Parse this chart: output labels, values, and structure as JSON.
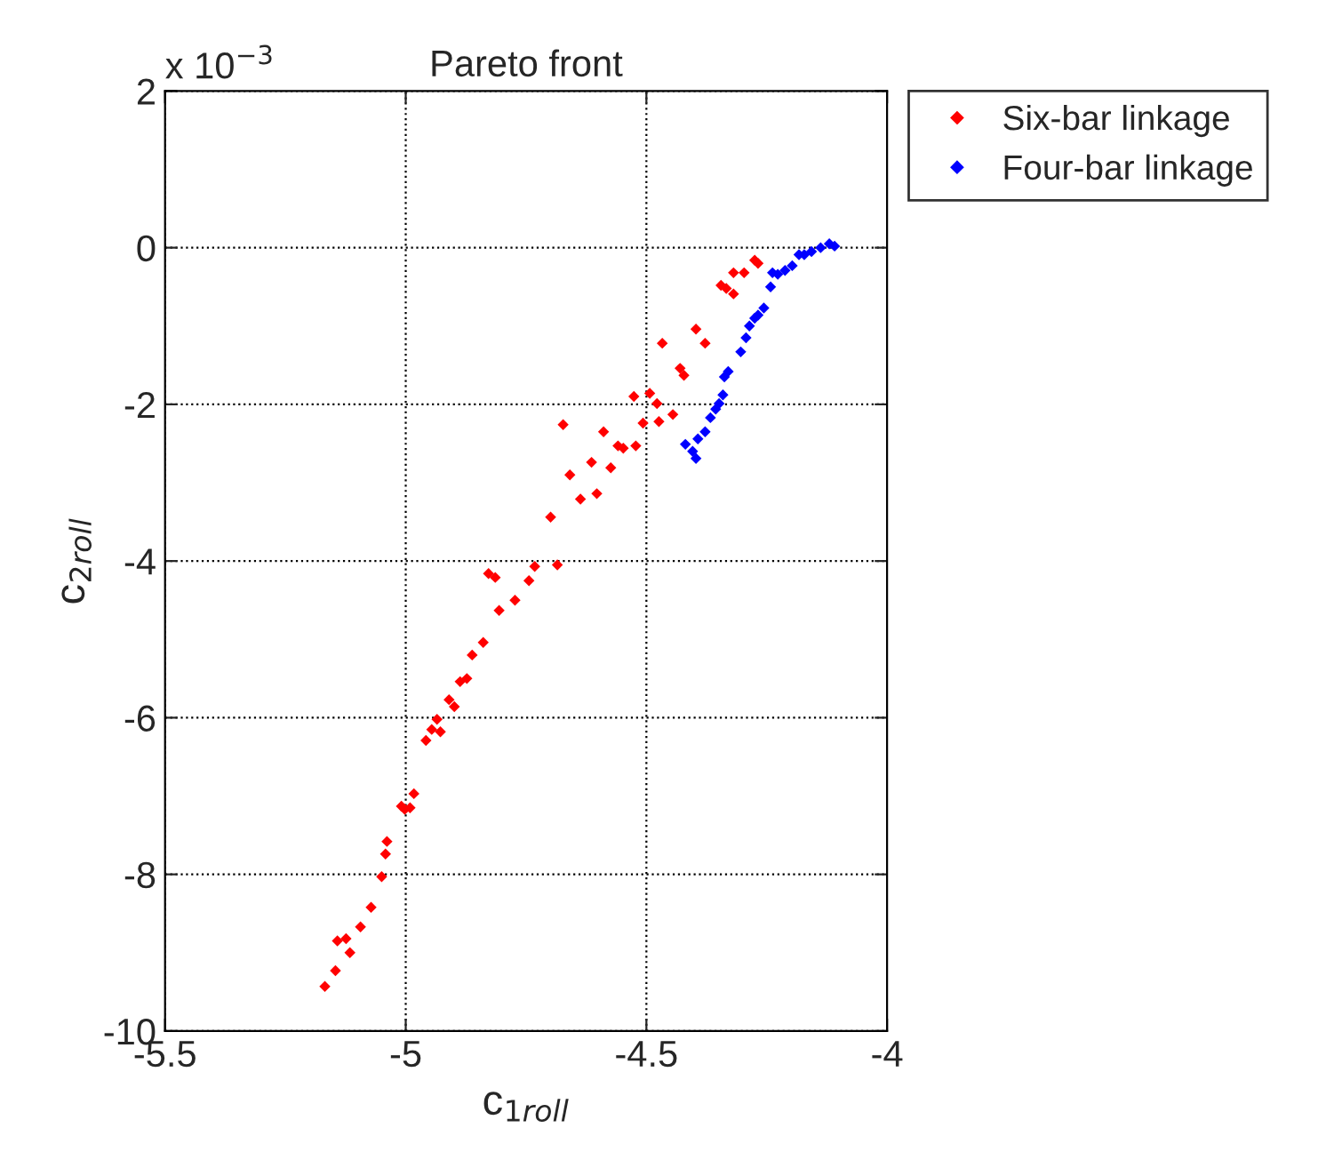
{
  "chart_data": {
    "type": "scatter",
    "title": "Pareto front",
    "xlabel": "c$_{1roll}$",
    "ylabel": "c$_{2roll}$",
    "annotations": [
      "x 10$^{−3}$"
    ],
    "xlim": [
      -5.5,
      -4
    ],
    "xticks": [
      -5.5,
      -5,
      -4.5,
      -4
    ],
    "ylim": [
      -10,
      2
    ],
    "yticks": [
      -10,
      -8,
      -6,
      -4,
      -2,
      0,
      2
    ],
    "grid": true,
    "legend": "top right",
    "marker": "diamond",
    "series": [
      {
        "name": "Six-bar linkage",
        "color": "#ff0000",
        "x": [
          -5.168,
          -5.146,
          -5.116,
          -5.142,
          -5.124,
          -5.094,
          -5.072,
          -5.05,
          -5.042,
          -5.039,
          -5.009,
          -5.002,
          -4.991,
          -4.983,
          -4.958,
          -4.946,
          -4.928,
          -4.935,
          -4.91,
          -4.899,
          -4.887,
          -4.873,
          -4.862,
          -4.839,
          -4.806,
          -4.773,
          -4.744,
          -4.732,
          -4.828,
          -4.814,
          -4.685,
          -4.699,
          -4.637,
          -4.603,
          -4.659,
          -4.574,
          -4.614,
          -4.559,
          -4.548,
          -4.522,
          -4.589,
          -4.673,
          -4.507,
          -4.474,
          -4.445,
          -4.526,
          -4.493,
          -4.478,
          -4.43,
          -4.422,
          -4.467,
          -4.397,
          -4.378,
          -4.345,
          -4.334,
          -4.319,
          -4.319,
          -4.297,
          -4.275,
          -4.268
        ],
        "values": [
          -9.43,
          -9.23,
          -9.0,
          -8.85,
          -8.82,
          -8.67,
          -8.42,
          -8.03,
          -7.74,
          -7.58,
          -7.13,
          -7.17,
          -7.15,
          -6.97,
          -6.29,
          -6.15,
          -6.18,
          -6.02,
          -5.77,
          -5.86,
          -5.54,
          -5.5,
          -5.2,
          -5.04,
          -4.63,
          -4.5,
          -4.25,
          -4.07,
          -4.16,
          -4.21,
          -4.05,
          -3.44,
          -3.21,
          -3.14,
          -2.9,
          -2.81,
          -2.74,
          -2.53,
          -2.56,
          -2.53,
          -2.35,
          -2.26,
          -2.24,
          -2.22,
          -2.13,
          -1.9,
          -1.86,
          -1.99,
          -1.54,
          -1.63,
          -1.22,
          -1.04,
          -1.22,
          -0.48,
          -0.52,
          -0.59,
          -0.32,
          -0.32,
          -0.16,
          -0.2
        ]
      },
      {
        "name": "Four-bar linkage",
        "color": "#0000ff",
        "x": [
          -4.419,
          -4.404,
          -4.397,
          -4.393,
          -4.378,
          -4.367,
          -4.356,
          -4.349,
          -4.341,
          -4.338,
          -4.33,
          -4.304,
          -4.293,
          -4.286,
          -4.275,
          -4.268,
          -4.256,
          -4.242,
          -4.238,
          -4.227,
          -4.212,
          -4.197,
          -4.183,
          -4.172,
          -4.157,
          -4.138,
          -4.12,
          -4.109
        ],
        "values": [
          -2.51,
          -2.6,
          -2.69,
          -2.44,
          -2.35,
          -2.17,
          -2.06,
          -1.99,
          -1.88,
          -1.65,
          -1.58,
          -1.33,
          -1.15,
          -1.0,
          -0.9,
          -0.86,
          -0.77,
          -0.5,
          -0.32,
          -0.34,
          -0.29,
          -0.23,
          -0.09,
          -0.09,
          -0.05,
          0.0,
          0.05,
          0.02
        ]
      }
    ]
  }
}
